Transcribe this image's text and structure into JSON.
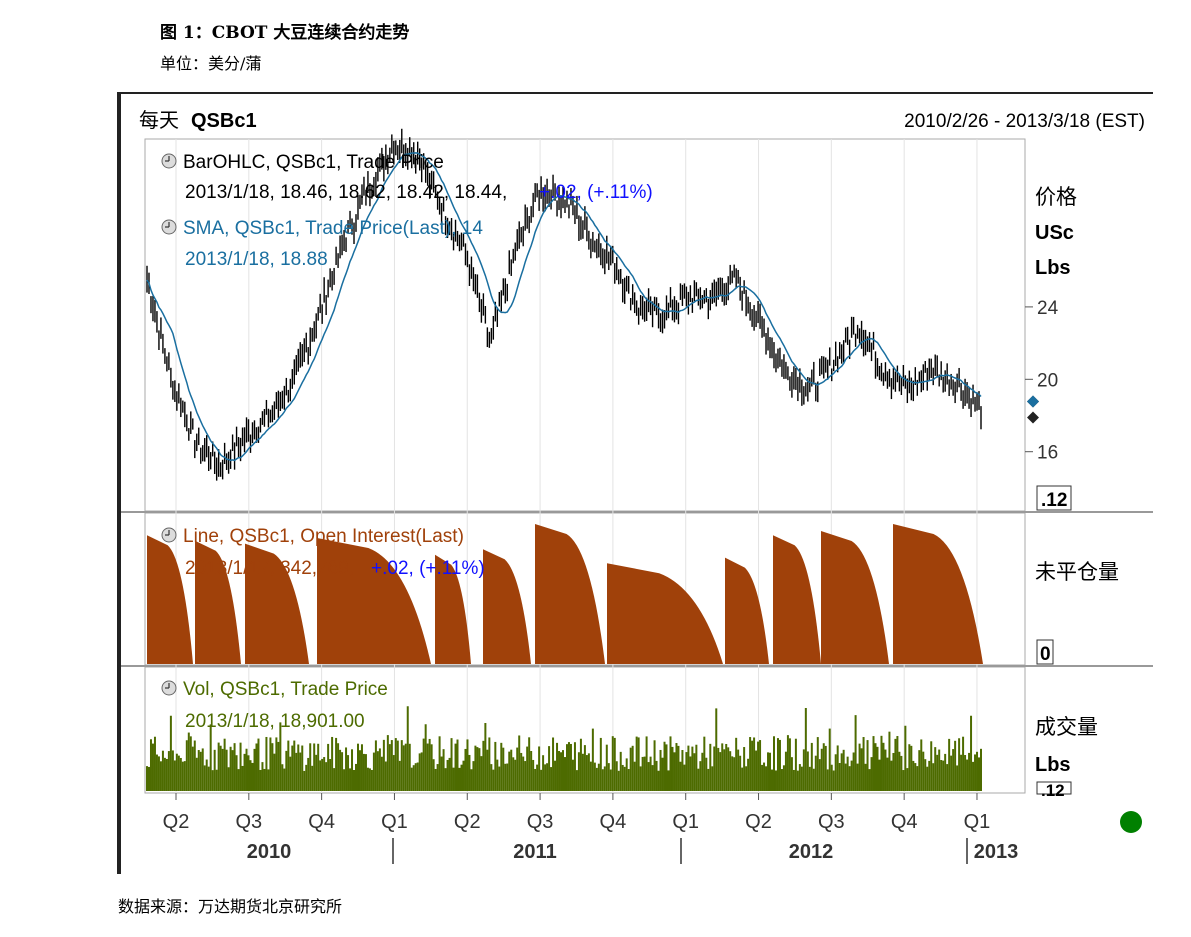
{
  "document": {
    "title": "图 1：CBOT 大豆连续合约走势",
    "unit": "单位：美分/蒲",
    "source": "数据来源：万达期货北京研究所"
  },
  "chart_header": {
    "frequency": "每天",
    "symbol": "QSBc1",
    "date_range": "2010/2/26 - 2013/3/18 (EST)"
  },
  "panels": {
    "price": {
      "series1_name": "BarOHLC, QSBc1, Trade Price",
      "series1_values": "2013/1/18, 18.46, 18.62, 18.42, 18.44,",
      "series1_change": "+.02, (+.11%)",
      "series2_name": "SMA, QSBc1, Trade Price(Last), 14",
      "series2_values": "2013/1/18, 18.88",
      "axis_title_1": "价格",
      "axis_title_2": "USc",
      "axis_title_3": "Lbs",
      "axis_scale_box": ".12",
      "y_ticks": [
        "24",
        "20",
        "16"
      ]
    },
    "oi": {
      "series_name": "Line, QSBc1, Open Interest(Last)",
      "series_values": "2013/1/17, 342,769,",
      "series_change": "+.02, (+.11%)",
      "axis_title": "未平仓量",
      "axis_scale_box": "0"
    },
    "vol": {
      "series_name": "Vol, QSBc1, Trade Price",
      "series_values": "2013/1/18, 18,901.00",
      "axis_title_1": "成交量",
      "axis_title_2": "Lbs",
      "axis_scale_box": ".12"
    }
  },
  "x_axis": {
    "quarters": [
      "Q2",
      "Q3",
      "Q4",
      "Q1",
      "Q2",
      "Q3",
      "Q4",
      "Q1",
      "Q2",
      "Q3",
      "Q4",
      "Q1"
    ],
    "years": [
      "2010",
      "2011",
      "2012",
      "2013"
    ]
  },
  "colors": {
    "price_bars": "#000000",
    "sma_line": "#1a6fa0",
    "open_interest": "#a0410a",
    "volume": "#4d6b00",
    "legend_change": "#1010ff",
    "status_dot": "#008000",
    "last_marker": "#1a6fa0"
  },
  "chart_data": [
    {
      "type": "line",
      "name": "BarOHLC / SMA price",
      "x": [
        "2010-03",
        "2010-04",
        "2010-05",
        "2010-06",
        "2010-07",
        "2010-08",
        "2010-09",
        "2010-10",
        "2010-11",
        "2010-12",
        "2011-01",
        "2011-02",
        "2011-03",
        "2011-04",
        "2011-05",
        "2011-06",
        "2011-07",
        "2011-08",
        "2011-09",
        "2011-10",
        "2011-11",
        "2011-12",
        "2012-01",
        "2012-02",
        "2012-03",
        "2012-04",
        "2012-05",
        "2012-06",
        "2012-07",
        "2012-08",
        "2012-09",
        "2012-10",
        "2012-11",
        "2012-12",
        "2013-01"
      ],
      "series": [
        {
          "name": "BarOHLC, QSBc1, Trade Price",
          "values": [
            25.5,
            20.0,
            16.5,
            15.2,
            16.8,
            18.0,
            20.0,
            23.5,
            27.5,
            30.5,
            33.0,
            32.5,
            29.5,
            27.0,
            22.0,
            27.0,
            30.5,
            30.0,
            28.0,
            26.5,
            24.0,
            23.5,
            24.5,
            24.5,
            25.5,
            23.0,
            20.5,
            19.5,
            21.0,
            23.0,
            20.5,
            19.5,
            20.5,
            19.8,
            18.44
          ]
        }
      ],
      "ylabel": "价格 USc Lbs",
      "yticks": [
        16,
        20,
        24
      ],
      "ylim": [
        13,
        33
      ]
    },
    {
      "type": "area",
      "name": "Open Interest",
      "series": [
        {
          "name": "Line, QSBc1, Open Interest(Last)",
          "values": [
            342769
          ]
        }
      ],
      "ylabel": "未平仓量"
    },
    {
      "type": "bar",
      "name": "Volume",
      "series": [
        {
          "name": "Vol, QSBc1, Trade Price",
          "values": [
            18901
          ]
        }
      ],
      "ylabel": "成交量 Lbs"
    }
  ]
}
